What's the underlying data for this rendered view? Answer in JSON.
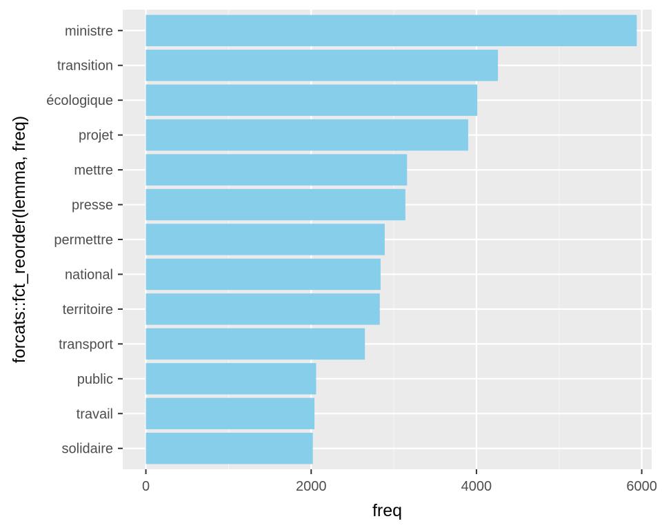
{
  "chart_data": {
    "type": "bar",
    "orientation": "horizontal",
    "xlabel": "freq",
    "ylabel": "forcats::fct_reorder(lemma, freq)",
    "xlim": [
      -280,
      6120
    ],
    "x_ticks": [
      0,
      2000,
      4000,
      6000
    ],
    "x_tick_labels": [
      "0",
      "2000",
      "4000",
      "6000"
    ],
    "grid": true,
    "categories": [
      "ministre",
      "transition",
      "écologique",
      "projet",
      "mettre",
      "presse",
      "permettre",
      "national",
      "territoire",
      "transport",
      "public",
      "travail",
      "solidaire"
    ],
    "values": [
      5940,
      4260,
      4010,
      3900,
      3160,
      3140,
      2890,
      2840,
      2830,
      2650,
      2060,
      2040,
      2020
    ],
    "colors": {
      "bar": "#87CEEB",
      "panel": "#EBEBEB",
      "grid_major": "#FFFFFF",
      "grid_minor": "#F5F5F5",
      "tick": "#333333"
    }
  }
}
